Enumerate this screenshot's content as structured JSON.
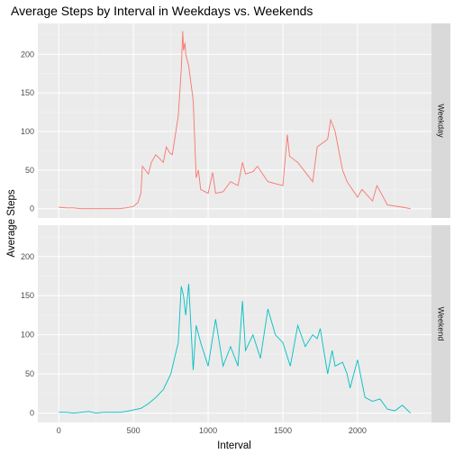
{
  "chart_data": {
    "type": "line",
    "title": "Average Steps by Interval in Weekdays vs. Weekends",
    "xlabel": "Interval",
    "ylabel": "Average Steps",
    "xlim": [
      -140,
      2495
    ],
    "ylim": [
      -12,
      240
    ],
    "x_ticks": [
      0,
      500,
      1000,
      1500,
      2000
    ],
    "y_ticks": [
      0,
      50,
      100,
      150,
      200
    ],
    "grid": true,
    "legend": "none",
    "facets": [
      "Weekday",
      "Weekend"
    ],
    "series": [
      {
        "facet": "Weekday",
        "color": "#F8766D",
        "x": [
          0,
          50,
          100,
          150,
          200,
          250,
          300,
          350,
          400,
          450,
          500,
          530,
          550,
          560,
          600,
          620,
          650,
          700,
          720,
          745,
          760,
          800,
          820,
          830,
          835,
          845,
          850,
          870,
          900,
          920,
          935,
          950,
          1000,
          1030,
          1050,
          1100,
          1150,
          1200,
          1230,
          1250,
          1300,
          1330,
          1400,
          1500,
          1530,
          1545,
          1600,
          1700,
          1730,
          1800,
          1820,
          1835,
          1850,
          1900,
          1930,
          2000,
          2030,
          2100,
          2130,
          2200,
          2300,
          2355
        ],
        "y": [
          2,
          1,
          1,
          0,
          0,
          0,
          0,
          0,
          0,
          1,
          3,
          8,
          20,
          55,
          45,
          60,
          70,
          60,
          80,
          72,
          70,
          120,
          180,
          230,
          205,
          215,
          200,
          185,
          140,
          40,
          50,
          25,
          20,
          47,
          20,
          22,
          35,
          30,
          60,
          45,
          48,
          55,
          35,
          30,
          96,
          68,
          60,
          35,
          80,
          90,
          115,
          108,
          100,
          50,
          35,
          15,
          25,
          10,
          30,
          5,
          2,
          0
        ]
      },
      {
        "facet": "Weekend",
        "color": "#00BFC4",
        "x": [
          0,
          50,
          100,
          150,
          200,
          250,
          300,
          350,
          400,
          450,
          500,
          550,
          600,
          650,
          700,
          750,
          800,
          820,
          835,
          850,
          870,
          900,
          920,
          950,
          1000,
          1050,
          1100,
          1150,
          1200,
          1230,
          1250,
          1300,
          1350,
          1400,
          1450,
          1500,
          1550,
          1600,
          1650,
          1700,
          1730,
          1750,
          1800,
          1830,
          1850,
          1900,
          1930,
          1950,
          2000,
          2050,
          2100,
          2150,
          2200,
          2250,
          2300,
          2355
        ],
        "y": [
          1,
          1,
          0,
          1,
          2,
          0,
          1,
          1,
          1,
          2,
          4,
          6,
          12,
          20,
          30,
          50,
          90,
          162,
          150,
          125,
          165,
          55,
          112,
          90,
          60,
          120,
          60,
          85,
          60,
          143,
          80,
          100,
          70,
          133,
          100,
          90,
          60,
          112,
          85,
          100,
          95,
          108,
          50,
          80,
          60,
          65,
          50,
          32,
          68,
          20,
          15,
          18,
          5,
          3,
          10,
          0
        ]
      }
    ]
  }
}
